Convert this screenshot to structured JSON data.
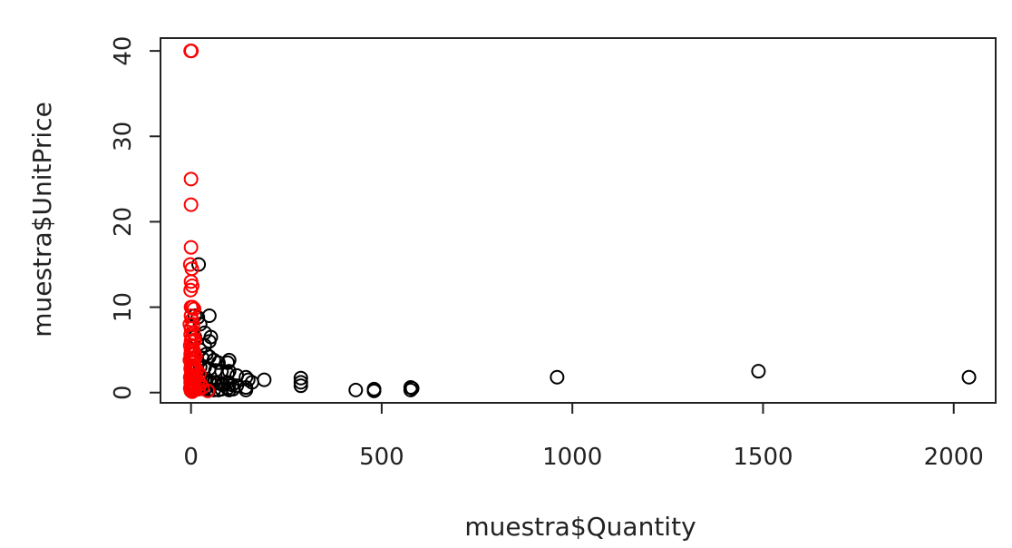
{
  "chart_data": {
    "type": "scatter",
    "title": "",
    "xlabel": "muestra$Quantity",
    "ylabel": "muestra$UnitPrice",
    "xlim": [
      -80,
      2110
    ],
    "ylim": [
      -1.2,
      41.5
    ],
    "x_ticks": [
      0,
      500,
      1000,
      1500,
      2000
    ],
    "y_ticks": [
      0,
      10,
      20,
      30,
      40
    ],
    "x_tick_labels": [
      "0",
      "500",
      "1000",
      "1500",
      "2000"
    ],
    "y_tick_labels": [
      "0",
      "10",
      "20",
      "30",
      "40"
    ],
    "grid": false,
    "legend": "none",
    "marker": "open-circle",
    "colors": {
      "negative": "#ff0000",
      "positive": "#000000",
      "axis": "#222222"
    },
    "series": [
      {
        "color": "#ff0000",
        "points": [
          [
            -1,
            40
          ],
          [
            1,
            40
          ],
          [
            0,
            25
          ],
          [
            0,
            22
          ],
          [
            0,
            17
          ],
          [
            -2,
            15
          ],
          [
            2,
            14.5
          ],
          [
            0,
            13
          ],
          [
            3,
            12.5
          ],
          [
            -1,
            12
          ],
          [
            0,
            10
          ],
          [
            4,
            10
          ],
          [
            8,
            9.8
          ],
          [
            0,
            9
          ],
          [
            2,
            8.5
          ],
          [
            -3,
            8
          ],
          [
            5,
            8
          ],
          [
            0,
            7.5
          ],
          [
            6,
            7
          ],
          [
            -1,
            6.8
          ],
          [
            3,
            6.5
          ],
          [
            0,
            6
          ],
          [
            8,
            6
          ],
          [
            -2,
            5.5
          ],
          [
            4,
            5.5
          ],
          [
            0,
            5
          ],
          [
            6,
            5
          ],
          [
            -1,
            4.5
          ],
          [
            2,
            4.5
          ],
          [
            9,
            4.5
          ],
          [
            0,
            4
          ],
          [
            5,
            4
          ],
          [
            -3,
            3.8
          ],
          [
            3,
            3.5
          ],
          [
            7,
            3.5
          ],
          [
            0,
            3
          ],
          [
            10,
            3
          ],
          [
            -1,
            2.8
          ],
          [
            4,
            2.8
          ],
          [
            1,
            2.5
          ],
          [
            7,
            2.5
          ],
          [
            0,
            2
          ],
          [
            3,
            2
          ],
          [
            12,
            2
          ],
          [
            -2,
            1.8
          ],
          [
            5,
            1.8
          ],
          [
            0,
            1.5
          ],
          [
            2,
            1.5
          ],
          [
            8,
            1.5
          ],
          [
            -1,
            1.2
          ],
          [
            4,
            1.2
          ],
          [
            0,
            1
          ],
          [
            6,
            1
          ],
          [
            3,
            0.8
          ],
          [
            0,
            0.6
          ],
          [
            -2,
            0.5
          ],
          [
            5,
            0.5
          ],
          [
            10,
            0.5
          ],
          [
            1,
            0.3
          ],
          [
            7,
            0.3
          ],
          [
            0,
            0.2
          ],
          [
            3,
            0.1
          ],
          [
            20,
            0.4
          ],
          [
            25,
            1.0
          ],
          [
            30,
            0.6
          ],
          [
            44,
            0.2
          ],
          [
            12,
            4.2
          ],
          [
            15,
            2.6
          ],
          [
            18,
            1.3
          ],
          [
            10,
            6.2
          ],
          [
            22,
            2.2
          ],
          [
            6,
            3.2
          ]
        ]
      },
      {
        "color": "#000000",
        "points": [
          [
            20,
            15
          ],
          [
            10,
            9
          ],
          [
            18,
            8.8
          ],
          [
            48,
            9
          ],
          [
            24,
            8
          ],
          [
            36,
            7
          ],
          [
            52,
            6.5
          ],
          [
            48,
            6
          ],
          [
            10,
            6.5
          ],
          [
            36,
            5.5
          ],
          [
            24,
            5
          ],
          [
            40,
            4.5
          ],
          [
            48,
            4.2
          ],
          [
            30,
            4
          ],
          [
            60,
            3.8
          ],
          [
            72,
            3.5
          ],
          [
            96,
            3.5
          ],
          [
            100,
            3.8
          ],
          [
            12,
            4
          ],
          [
            16,
            3.2
          ],
          [
            24,
            3
          ],
          [
            36,
            3
          ],
          [
            48,
            2.8
          ],
          [
            64,
            2.6
          ],
          [
            80,
            2.5
          ],
          [
            96,
            2.2
          ],
          [
            100,
            2.5
          ],
          [
            120,
            2
          ],
          [
            144,
            1.8
          ],
          [
            10,
            2.5
          ],
          [
            12,
            2
          ],
          [
            20,
            2
          ],
          [
            24,
            1.8
          ],
          [
            30,
            1.6
          ],
          [
            36,
            1.5
          ],
          [
            40,
            1.4
          ],
          [
            48,
            1.3
          ],
          [
            50,
            1.2
          ],
          [
            60,
            1.2
          ],
          [
            72,
            1.1
          ],
          [
            80,
            1
          ],
          [
            84,
            0.9
          ],
          [
            96,
            1.2
          ],
          [
            100,
            1
          ],
          [
            108,
            0.9
          ],
          [
            120,
            0.8
          ],
          [
            144,
            0.6
          ],
          [
            150,
            1.5
          ],
          [
            160,
            1.2
          ],
          [
            192,
            1.5
          ],
          [
            288,
            1.7
          ],
          [
            288,
            1.2
          ],
          [
            288,
            0.8
          ],
          [
            10,
            1
          ],
          [
            12,
            0.8
          ],
          [
            20,
            0.7
          ],
          [
            24,
            0.6
          ],
          [
            30,
            0.5
          ],
          [
            36,
            0.4
          ],
          [
            48,
            0.4
          ],
          [
            60,
            0.3
          ],
          [
            72,
            0.3
          ],
          [
            80,
            0.4
          ],
          [
            96,
            0.5
          ],
          [
            100,
            0.3
          ],
          [
            110,
            0.4
          ],
          [
            144,
            0.3
          ],
          [
            12,
            0.4
          ],
          [
            6,
            0.5
          ],
          [
            8,
            1.5
          ],
          [
            10,
            0.3
          ],
          [
            432,
            0.3
          ],
          [
            480,
            0.4
          ],
          [
            480,
            0.2
          ],
          [
            576,
            0.3
          ],
          [
            576,
            0.6
          ],
          [
            580,
            0.5
          ],
          [
            960,
            1.8
          ],
          [
            1488,
            2.5
          ],
          [
            2040,
            1.8
          ]
        ]
      }
    ]
  }
}
